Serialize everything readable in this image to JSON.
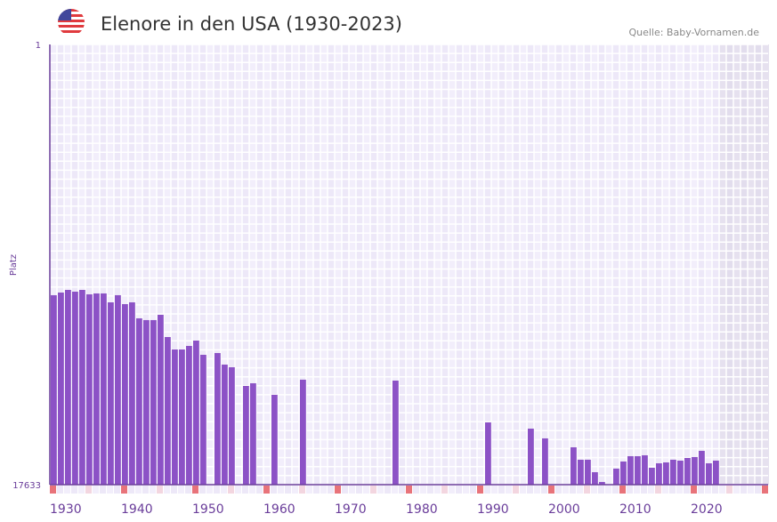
{
  "chart_data": {
    "type": "bar",
    "title": "Elenore in den USA (1930-2023)",
    "source": "Quelle: Baby-Vornamen.de",
    "ylabel": "Platz",
    "xlabel": "",
    "ylim": [
      1,
      17633
    ],
    "y_inverted": true,
    "ytick_labels": [
      "1",
      "17633"
    ],
    "xtick_labels": [
      "1930",
      "1940",
      "1950",
      "1960",
      "1970",
      "1980",
      "1990",
      "2000",
      "2010",
      "2020"
    ],
    "x_range": [
      1930,
      2030
    ],
    "forecast_from": 2024,
    "grid": true,
    "bar_color": "#8c52c6",
    "years": [
      1930,
      1931,
      1932,
      1933,
      1934,
      1935,
      1936,
      1937,
      1938,
      1939,
      1940,
      1941,
      1942,
      1943,
      1944,
      1945,
      1946,
      1947,
      1948,
      1949,
      1950,
      1951,
      1953,
      1954,
      1955,
      1957,
      1958,
      1961,
      1965,
      1978,
      1991,
      1997,
      1999,
      2003,
      2004,
      2005,
      2006,
      2007,
      2009,
      2010,
      2011,
      2012,
      2013,
      2014,
      2015,
      2016,
      2017,
      2018,
      2019,
      2020,
      2021,
      2022,
      2023
    ],
    "ranks": [
      10045,
      9938,
      9832,
      9903,
      9832,
      10010,
      9974,
      9974,
      10331,
      10045,
      10402,
      10331,
      10971,
      11042,
      11042,
      10829,
      11720,
      12218,
      12218,
      12076,
      11862,
      12432,
      12361,
      12824,
      12931,
      13679,
      13572,
      14034,
      13429,
      13465,
      15139,
      15389,
      15780,
      16137,
      16635,
      16635,
      17134,
      17526,
      16991,
      16706,
      16493,
      16493,
      16457,
      16956,
      16778,
      16742,
      16635,
      16671,
      16564,
      16528,
      16279,
      16778,
      16671
    ]
  },
  "icons": {
    "flag": "us-flag-icon"
  }
}
